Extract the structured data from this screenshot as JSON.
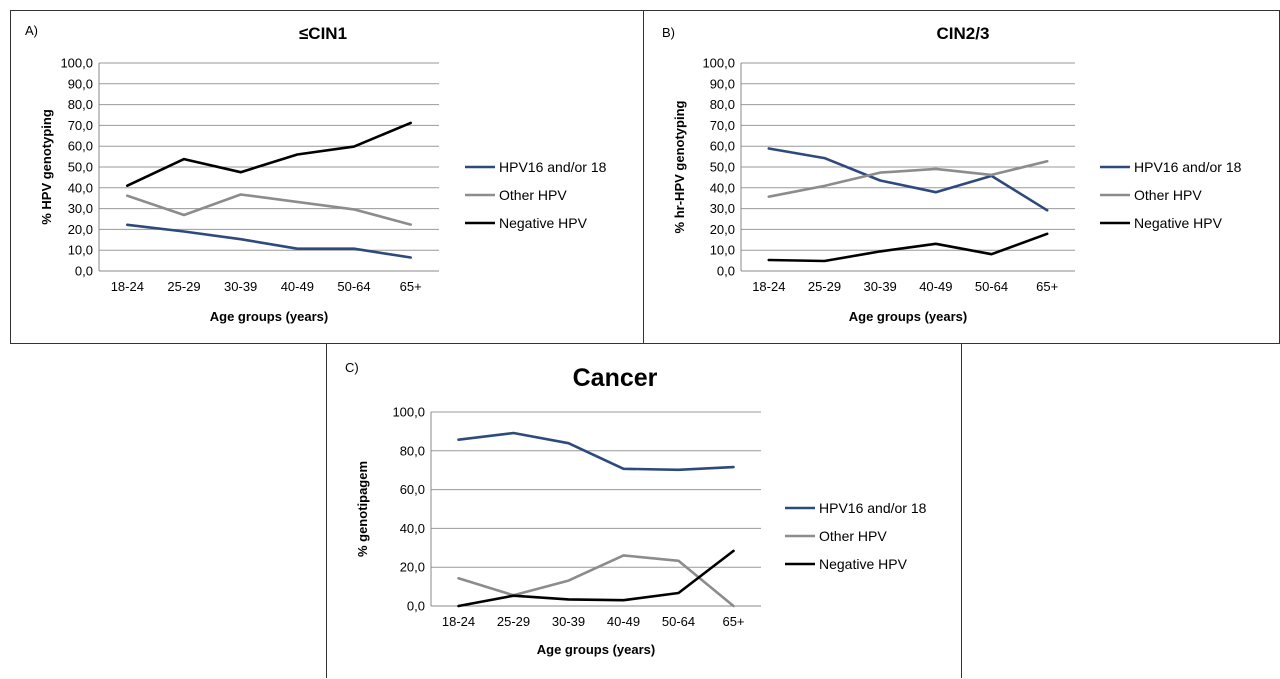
{
  "panels": [
    {
      "letter": "A)"
    },
    {
      "letter": "B)"
    },
    {
      "letter": "C)"
    }
  ],
  "chart_data": [
    {
      "type": "line",
      "title": "≤CIN1",
      "xlabel": "Age groups (years)",
      "ylabel": "% HPV genotyping",
      "categories": [
        "18-24",
        "25-29",
        "30-39",
        "40-49",
        "50-64",
        "65+"
      ],
      "y_ticks": [
        "0,0",
        "10,0",
        "20,0",
        "30,0",
        "40,0",
        "50,0",
        "60,0",
        "70,0",
        "80,0",
        "90,0",
        "100,0"
      ],
      "ylim": [
        0,
        100
      ],
      "grid": true,
      "legend_position": "right",
      "series": [
        {
          "name": "HPV16 and/or 18",
          "color": "#2E4A7D",
          "values": [
            22.2,
            19.0,
            15.3,
            10.7,
            10.7,
            6.5
          ]
        },
        {
          "name": "Other HPV",
          "color": "#8C8C8C",
          "values": [
            36.2,
            26.9,
            36.8,
            33.2,
            29.6,
            22.3
          ]
        },
        {
          "name": "Negative HPV",
          "color": "#000000",
          "values": [
            41.0,
            53.8,
            47.5,
            56.0,
            59.8,
            71.2
          ]
        }
      ]
    },
    {
      "type": "line",
      "title": "CIN2/3",
      "xlabel": "Age groups (years)",
      "ylabel": "% hr-HPV genotyping",
      "categories": [
        "18-24",
        "25-29",
        "30-39",
        "40-49",
        "50-64",
        "65+"
      ],
      "y_ticks": [
        "0,0",
        "10,0",
        "20,0",
        "30,0",
        "40,0",
        "50,0",
        "60,0",
        "70,0",
        "80,0",
        "90,0",
        "100,0"
      ],
      "ylim": [
        0,
        100
      ],
      "grid": true,
      "legend_position": "right",
      "series": [
        {
          "name": "HPV16 and/or 18",
          "color": "#2E4A7D",
          "values": [
            58.9,
            54.3,
            43.5,
            37.9,
            45.7,
            29.2
          ]
        },
        {
          "name": "Other HPV",
          "color": "#8C8C8C",
          "values": [
            35.7,
            40.9,
            47.3,
            49.1,
            46.2,
            52.8
          ]
        },
        {
          "name": "Negative HPV",
          "color": "#000000",
          "values": [
            5.3,
            4.8,
            9.4,
            13.1,
            8.1,
            17.9
          ]
        }
      ]
    },
    {
      "type": "line",
      "title": "Cancer",
      "xlabel": "Age groups (years)",
      "ylabel": "% genotipagem",
      "categories": [
        "18-24",
        "25-29",
        "30-39",
        "40-49",
        "50-64",
        "65+"
      ],
      "y_ticks": [
        "0,0",
        "20,0",
        "40,0",
        "60,0",
        "80,0",
        "100,0"
      ],
      "ylim": [
        0,
        100
      ],
      "grid": true,
      "legend_position": "right",
      "series": [
        {
          "name": "HPV16 and/or 18",
          "color": "#2E4A7D",
          "values": [
            85.7,
            89.2,
            83.9,
            70.7,
            70.2,
            71.6
          ]
        },
        {
          "name": "Other HPV",
          "color": "#8C8C8C",
          "values": [
            14.3,
            5.5,
            13.1,
            26.1,
            23.3,
            0.0
          ]
        },
        {
          "name": "Negative HPV",
          "color": "#000000",
          "values": [
            0.0,
            5.3,
            3.4,
            3.0,
            6.7,
            28.4
          ]
        }
      ]
    }
  ]
}
